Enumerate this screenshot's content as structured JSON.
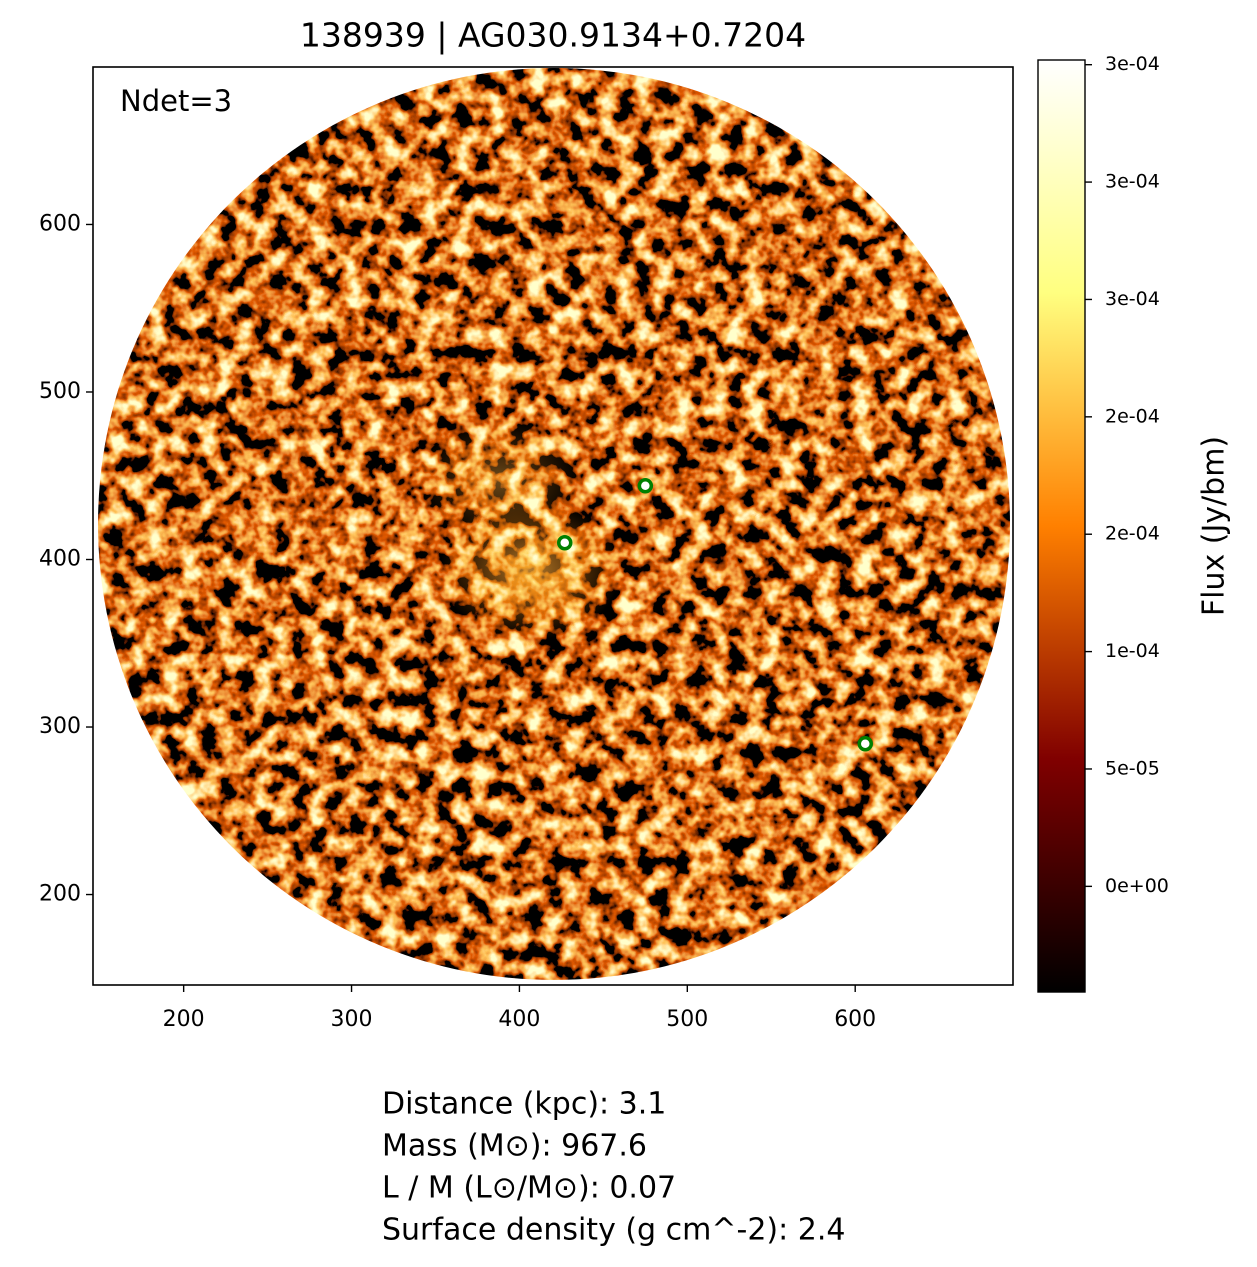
{
  "chart_data": {
    "type": "image",
    "title": "138939 | AG030.9134+0.7204",
    "annotation": "Ndet=3",
    "xlim": [
      146,
      694
    ],
    "ylim": [
      146,
      694
    ],
    "xticks": [
      200,
      300,
      400,
      500,
      600
    ],
    "yticks": [
      200,
      300,
      400,
      500,
      600
    ],
    "colormap": "afmhot",
    "colorbar": {
      "label": "Flux (Jy/bm)",
      "lim": [
        -4.5e-05,
        0.000352
      ],
      "ticks": [
        {
          "value": 0,
          "label": "0e+00"
        },
        {
          "value": 5e-05,
          "label": "5e-05"
        },
        {
          "value": 0.0001,
          "label": "1e-04"
        },
        {
          "value": 0.00015,
          "label": "2e-04"
        },
        {
          "value": 0.0002,
          "label": "2e-04"
        },
        {
          "value": 0.00025,
          "label": "3e-04"
        },
        {
          "value": 0.0003,
          "label": "3e-04"
        },
        {
          "value": 0.00035,
          "label": "3e-04"
        }
      ]
    },
    "detections": {
      "x": [
        475,
        427,
        606
      ],
      "y": [
        444,
        410,
        290
      ],
      "color": "#008000"
    },
    "info": [
      "Distance (kpc): 3.1",
      "Mass (M⊙): 967.6",
      "L / M (L⊙/M⊙): 0.07",
      "Surface density (g cm^-2): 2.4"
    ]
  }
}
